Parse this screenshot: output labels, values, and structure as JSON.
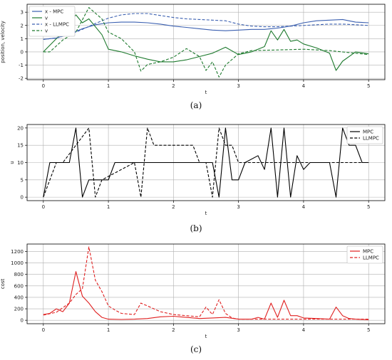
{
  "chart_data": [
    {
      "type": "line",
      "caption": "(a)",
      "xlabel": "t",
      "ylabel": "position, velocity",
      "xlim": [
        -0.25,
        5.25
      ],
      "ylim": [
        -2.1,
        3.6
      ],
      "xticks": [
        0,
        1,
        2,
        3,
        4,
        5
      ],
      "yticks": [
        -2,
        -1,
        0,
        1,
        2,
        3
      ],
      "grid": true,
      "legend": "top-left",
      "series": [
        {
          "name": "x - MPC",
          "color": "#3a5fb0",
          "dash": "solid",
          "x": [
            0,
            0.2,
            0.4,
            0.6,
            0.8,
            1.0,
            1.2,
            1.4,
            1.6,
            1.8,
            2.0,
            2.2,
            2.4,
            2.6,
            2.8,
            3.0,
            3.2,
            3.4,
            3.6,
            3.8,
            4.0,
            4.2,
            4.4,
            4.6,
            4.8,
            5.0
          ],
          "y": [
            0.95,
            1.05,
            1.35,
            1.75,
            2.05,
            2.2,
            2.25,
            2.25,
            2.2,
            2.1,
            1.95,
            1.85,
            1.75,
            1.65,
            1.6,
            1.65,
            1.7,
            1.7,
            1.8,
            1.95,
            2.2,
            2.35,
            2.4,
            2.45,
            2.25,
            2.2
          ]
        },
        {
          "name": "v",
          "color": "#1e7a2e",
          "dash": "solid",
          "x": [
            0,
            0.1,
            0.3,
            0.5,
            0.6,
            0.7,
            0.9,
            1.0,
            1.2,
            1.4,
            1.6,
            1.8,
            2.0,
            2.2,
            2.4,
            2.6,
            2.8,
            3.0,
            3.2,
            3.4,
            3.5,
            3.6,
            3.7,
            3.8,
            3.9,
            4.0,
            4.2,
            4.4,
            4.5,
            4.6,
            4.8,
            5.0
          ],
          "y": [
            0.0,
            0.5,
            1.5,
            2.8,
            2.2,
            2.5,
            1.3,
            0.2,
            0.0,
            -0.3,
            -0.55,
            -0.75,
            -0.75,
            -0.6,
            -0.35,
            -0.1,
            0.35,
            -0.2,
            0.0,
            0.4,
            1.6,
            0.9,
            1.7,
            0.8,
            0.9,
            0.6,
            0.3,
            -0.1,
            -1.4,
            -0.7,
            0.0,
            -0.15
          ]
        },
        {
          "name": "x - LLMPC",
          "color": "#3a5fb0",
          "dash": "dashed",
          "x": [
            0,
            0.2,
            0.4,
            0.6,
            0.8,
            1.0,
            1.2,
            1.4,
            1.6,
            1.8,
            2.0,
            2.2,
            2.4,
            2.6,
            2.8,
            3.0,
            3.2,
            3.4,
            3.6,
            3.8,
            4.0,
            4.2,
            4.4,
            4.6,
            4.8,
            5.0
          ],
          "y": [
            0.95,
            1.05,
            1.3,
            1.7,
            2.15,
            2.55,
            2.8,
            2.9,
            2.9,
            2.75,
            2.6,
            2.5,
            2.45,
            2.4,
            2.35,
            2.1,
            1.95,
            1.9,
            1.9,
            1.95,
            2.0,
            2.05,
            2.1,
            2.1,
            2.05,
            2.0
          ]
        },
        {
          "name": "v",
          "color": "#1e7a2e",
          "dash": "dashed",
          "x": [
            0,
            0.1,
            0.3,
            0.5,
            0.7,
            0.9,
            1.0,
            1.2,
            1.4,
            1.5,
            1.6,
            1.8,
            2.0,
            2.2,
            2.4,
            2.5,
            2.6,
            2.7,
            2.8,
            3.0,
            3.2,
            3.6,
            4.0,
            4.4,
            4.8,
            5.0
          ],
          "y": [
            0.0,
            0.0,
            0.9,
            1.5,
            3.35,
            2.5,
            1.5,
            1.0,
            0.0,
            -1.45,
            -0.95,
            -0.75,
            -0.4,
            0.25,
            -0.35,
            -1.4,
            -0.75,
            -1.9,
            -1.0,
            -0.15,
            0.1,
            0.15,
            0.2,
            0.1,
            -0.1,
            -0.2
          ]
        }
      ]
    },
    {
      "type": "line",
      "caption": "(b)",
      "xlabel": "t",
      "ylabel": "u",
      "xlim": [
        -0.25,
        5.25
      ],
      "ylim": [
        -1,
        21
      ],
      "xticks": [
        0,
        1,
        2,
        3,
        4,
        5
      ],
      "yticks": [
        0,
        5,
        10,
        15,
        20
      ],
      "grid": true,
      "legend": "top-right",
      "series": [
        {
          "name": "MPC",
          "color": "#000000",
          "dash": "solid",
          "x": [
            0,
            0.1,
            0.2,
            0.3,
            0.4,
            0.5,
            0.6,
            0.7,
            0.8,
            0.9,
            1.0,
            1.1,
            2.6,
            2.7,
            2.8,
            2.9,
            3.0,
            3.1,
            3.3,
            3.4,
            3.5,
            3.6,
            3.7,
            3.8,
            3.9,
            4.0,
            4.1,
            4.2,
            4.3,
            4.4,
            4.5,
            4.6,
            4.7,
            4.8,
            4.9,
            5.0
          ],
          "y": [
            0,
            10,
            10,
            10,
            10,
            20,
            0,
            5,
            5,
            5,
            5,
            10,
            10,
            0,
            20,
            5,
            5,
            10,
            12,
            8,
            20,
            0,
            20,
            0,
            12,
            8,
            10,
            10,
            10,
            10,
            0,
            20,
            15,
            15,
            10,
            10
          ]
        },
        {
          "name": "LLMPC",
          "color": "#000000",
          "dash": "dashed",
          "x": [
            0,
            0.2,
            0.3,
            0.7,
            0.8,
            0.9,
            1.4,
            1.5,
            1.6,
            1.7,
            2.3,
            2.4,
            2.5,
            2.6,
            2.7,
            2.8,
            2.9,
            3.0,
            3.1,
            5.0
          ],
          "y": [
            0,
            10,
            10,
            20,
            0,
            5,
            10,
            0,
            20,
            15,
            15,
            10,
            10,
            0,
            20,
            15,
            15,
            10,
            10,
            10
          ]
        }
      ]
    },
    {
      "type": "line",
      "caption": "(c)",
      "xlabel": "t",
      "ylabel": "cost",
      "xlim": [
        -0.25,
        5.25
      ],
      "ylim": [
        -60,
        1330
      ],
      "xticks": [
        0,
        1,
        2,
        3,
        4,
        5
      ],
      "yticks": [
        0,
        200,
        400,
        600,
        800,
        1000,
        1200
      ],
      "grid": true,
      "legend": "top-right",
      "series": [
        {
          "name": "MPC",
          "color": "#e02020",
          "dash": "solid",
          "x": [
            0,
            0.1,
            0.2,
            0.3,
            0.4,
            0.5,
            0.6,
            0.7,
            0.8,
            0.9,
            1.0,
            1.2,
            1.4,
            1.6,
            1.8,
            2.0,
            2.2,
            2.4,
            2.6,
            2.8,
            3.0,
            3.2,
            3.3,
            3.4,
            3.5,
            3.6,
            3.7,
            3.8,
            3.9,
            4.0,
            4.2,
            4.4,
            4.5,
            4.6,
            4.7,
            4.8,
            5.0
          ],
          "y": [
            100,
            120,
            200,
            150,
            300,
            850,
            420,
            300,
            150,
            50,
            20,
            15,
            20,
            30,
            60,
            70,
            50,
            30,
            40,
            50,
            20,
            20,
            50,
            20,
            300,
            50,
            350,
            80,
            80,
            40,
            30,
            20,
            230,
            80,
            30,
            20,
            10
          ]
        },
        {
          "name": "LLMPC",
          "color": "#e02020",
          "dash": "dashed",
          "x": [
            0,
            0.2,
            0.4,
            0.5,
            0.6,
            0.7,
            0.8,
            0.9,
            1.0,
            1.1,
            1.2,
            1.4,
            1.5,
            1.6,
            1.8,
            2.0,
            2.2,
            2.4,
            2.5,
            2.6,
            2.7,
            2.8,
            2.9,
            3.0,
            3.2,
            3.6,
            4.0,
            4.4,
            4.8,
            5.0
          ],
          "y": [
            90,
            140,
            300,
            450,
            550,
            1280,
            700,
            500,
            250,
            180,
            120,
            100,
            300,
            250,
            150,
            100,
            80,
            60,
            230,
            100,
            360,
            120,
            40,
            20,
            20,
            20,
            20,
            20,
            20,
            20
          ]
        }
      ]
    }
  ]
}
